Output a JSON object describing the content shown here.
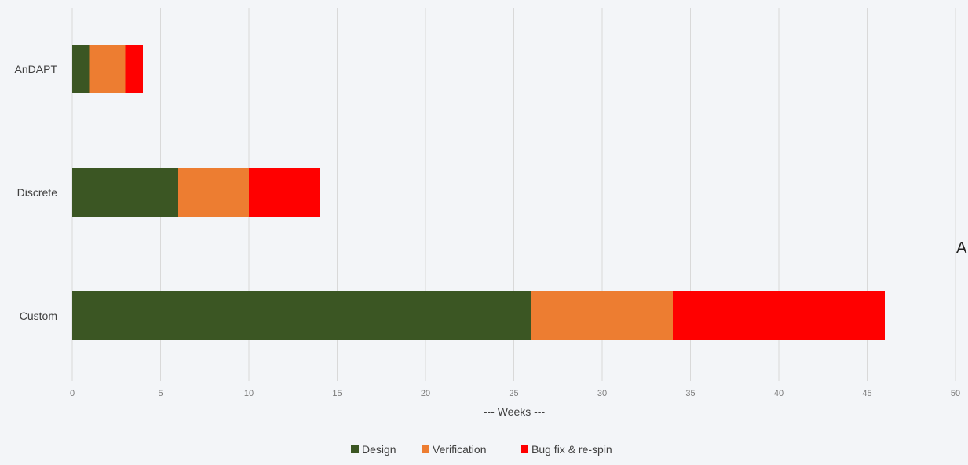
{
  "chart_data": {
    "type": "bar",
    "orientation": "horizontal",
    "stacked": true,
    "categories": [
      "AnDAPT",
      "Discrete",
      "Custom"
    ],
    "series": [
      {
        "name": "Design",
        "values": [
          1,
          6,
          26
        ],
        "color": "#3b5623"
      },
      {
        "name": "Verification",
        "values": [
          2,
          4,
          8
        ],
        "color": "#ed7d31"
      },
      {
        "name": "Bug fix & re-spin",
        "values": [
          1,
          4,
          12
        ],
        "color": "#ff0000"
      }
    ],
    "xlabel": "--- Weeks ---",
    "ylabel": "",
    "xlim": [
      0,
      50
    ],
    "xticks": [
      0,
      5,
      10,
      15,
      20,
      25,
      30,
      35,
      40,
      45,
      50
    ],
    "grid": "vertical",
    "legend": "bottom"
  },
  "stray_text": "A"
}
